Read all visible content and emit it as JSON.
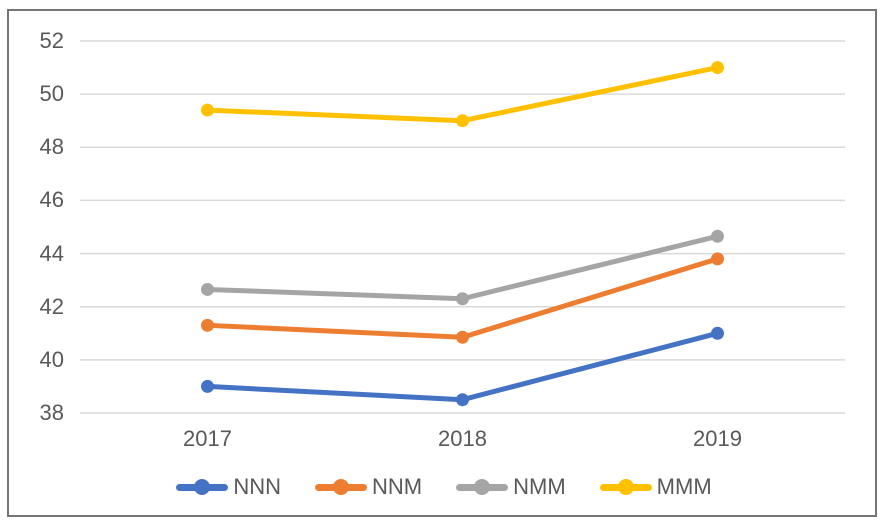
{
  "chart_data": {
    "type": "line",
    "title": "",
    "xlabel": "",
    "ylabel": "",
    "categories": [
      "2017",
      "2018",
      "2019"
    ],
    "series": [
      {
        "name": "NNN",
        "color": "#4472C4",
        "values": [
          39.0,
          38.5,
          41.0
        ]
      },
      {
        "name": "NNM",
        "color": "#ED7D31",
        "values": [
          41.3,
          40.85,
          43.8
        ]
      },
      {
        "name": "NMM",
        "color": "#A5A5A5",
        "values": [
          42.65,
          42.3,
          44.65
        ]
      },
      {
        "name": "MMM",
        "color": "#FFC000",
        "values": [
          49.4,
          49.0,
          51.0
        ]
      }
    ],
    "ylim": [
      38,
      52
    ],
    "yticks": [
      "38",
      "40",
      "42",
      "44",
      "46",
      "48",
      "50",
      "52"
    ],
    "ytick_step": 2,
    "grid": true,
    "legend_position": "bottom",
    "colors": {
      "gridline": "#D9D9D9",
      "axis_text": "#595959",
      "frame_border": "#757575",
      "background": "#FFFFFF"
    }
  }
}
